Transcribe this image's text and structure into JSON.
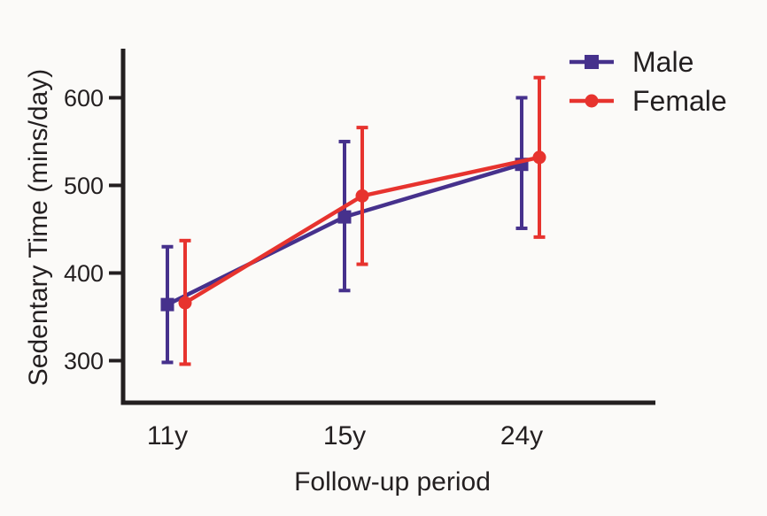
{
  "chart_data": {
    "type": "line",
    "title": "",
    "xlabel": "Follow-up period",
    "ylabel": "Sedentary Time (mins/day)",
    "categories": [
      "11y",
      "15y",
      "24y"
    ],
    "yticks": [
      300,
      400,
      500,
      600
    ],
    "ylim": [
      252,
      656
    ],
    "grid": false,
    "legend_position": "top-right",
    "axis_color": "#231f20",
    "text_color": "#231f20",
    "error_bars": "yes, vertical with caps",
    "series": [
      {
        "name": "Male",
        "marker": "square",
        "color": "#46318C",
        "values": [
          364,
          464,
          524
        ],
        "error_low": [
          298,
          380,
          451
        ],
        "error_high": [
          430,
          550,
          600
        ]
      },
      {
        "name": "Female",
        "marker": "circle",
        "color": "#E7332E",
        "values": [
          366,
          488,
          532
        ],
        "error_low": [
          296,
          410,
          441
        ],
        "error_high": [
          437,
          566,
          623
        ]
      }
    ]
  }
}
